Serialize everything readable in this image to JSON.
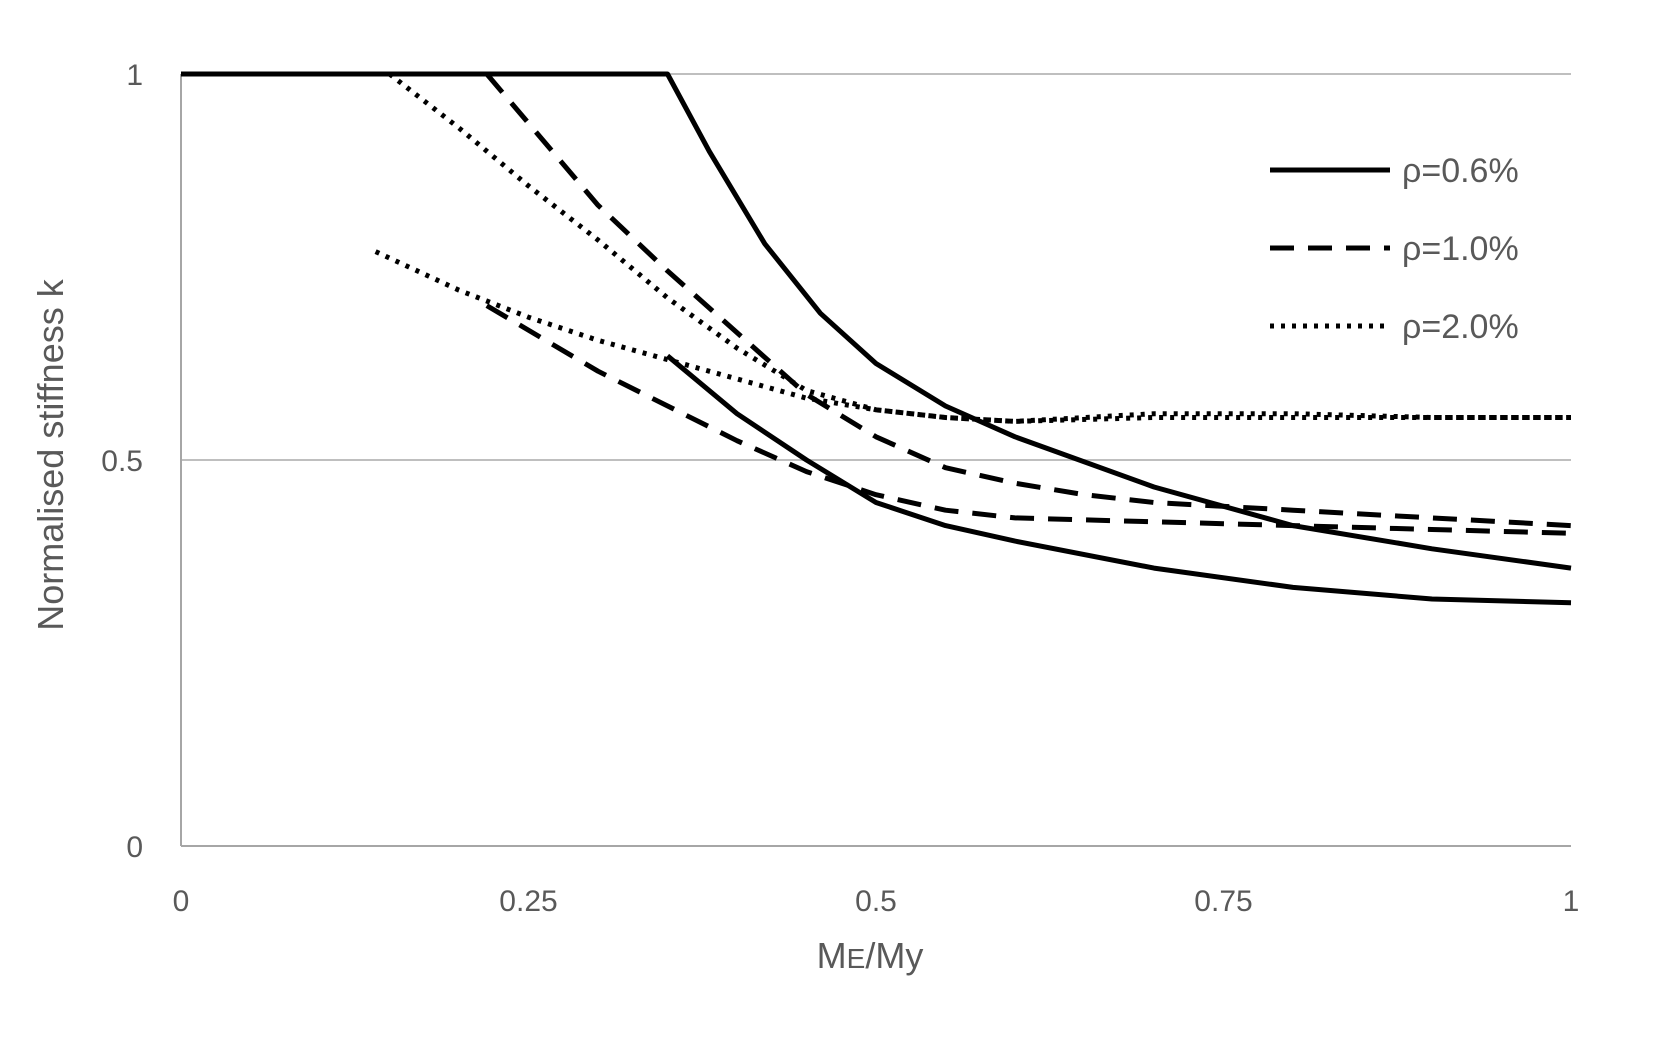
{
  "chart_data": {
    "type": "line",
    "xlabel": "ME/My",
    "xlabel_main": "M",
    "xlabel_sub": "E",
    "xlabel_rest": "/My",
    "ylabel": "Normalised stiffness k",
    "xlim": [
      0,
      1
    ],
    "ylim": [
      0,
      1
    ],
    "xticks": [
      0,
      0.25,
      0.5,
      0.75,
      1
    ],
    "xtick_labels": [
      "0",
      "0.25",
      "0.5",
      "0.75",
      "1"
    ],
    "yticks": [
      0,
      0.5,
      1
    ],
    "ytick_labels": [
      "0",
      "0.5",
      "1"
    ],
    "grid": {
      "horizontal": true,
      "vertical": false
    },
    "legend_position": "top-right",
    "line_color": "#000000",
    "gridline_color": "#bfbfbf",
    "axis_color": "#a6a6a6",
    "legend": [
      {
        "label": "ρ=0.6%",
        "style": "solid"
      },
      {
        "label": "ρ=1.0%",
        "style": "dashed"
      },
      {
        "label": "ρ=2.0%",
        "style": "dotted"
      }
    ],
    "series": [
      {
        "legend_index": 0,
        "style": "solid",
        "points": [
          [
            0,
            1
          ],
          [
            0.35,
            1
          ],
          [
            0.38,
            0.9
          ],
          [
            0.42,
            0.78
          ],
          [
            0.46,
            0.69
          ],
          [
            0.5,
            0.625
          ],
          [
            0.55,
            0.57
          ],
          [
            0.6,
            0.53
          ],
          [
            0.7,
            0.465
          ],
          [
            0.8,
            0.415
          ],
          [
            0.9,
            0.385
          ],
          [
            1.0,
            0.36
          ]
        ]
      },
      {
        "legend_index": 0,
        "style": "solid",
        "points": [
          [
            0.35,
            0.635
          ],
          [
            0.4,
            0.56
          ],
          [
            0.45,
            0.5
          ],
          [
            0.5,
            0.445
          ],
          [
            0.55,
            0.415
          ],
          [
            0.6,
            0.395
          ],
          [
            0.7,
            0.36
          ],
          [
            0.8,
            0.335
          ],
          [
            0.9,
            0.32
          ],
          [
            1.0,
            0.315
          ]
        ]
      },
      {
        "legend_index": 1,
        "style": "dashed",
        "points": [
          [
            0.22,
            1
          ],
          [
            0.3,
            0.83
          ],
          [
            0.35,
            0.745
          ],
          [
            0.4,
            0.665
          ],
          [
            0.45,
            0.585
          ],
          [
            0.5,
            0.53
          ],
          [
            0.55,
            0.49
          ],
          [
            0.6,
            0.47
          ],
          [
            0.65,
            0.455
          ],
          [
            0.7,
            0.445
          ],
          [
            0.8,
            0.435
          ],
          [
            0.9,
            0.425
          ],
          [
            1.0,
            0.415
          ]
        ]
      },
      {
        "legend_index": 1,
        "style": "dashed",
        "points": [
          [
            0.22,
            0.7
          ],
          [
            0.3,
            0.615
          ],
          [
            0.4,
            0.525
          ],
          [
            0.45,
            0.485
          ],
          [
            0.5,
            0.455
          ],
          [
            0.55,
            0.435
          ],
          [
            0.6,
            0.425
          ],
          [
            0.7,
            0.42
          ],
          [
            0.8,
            0.415
          ],
          [
            0.9,
            0.41
          ],
          [
            1.0,
            0.405
          ]
        ]
      },
      {
        "legend_index": 2,
        "style": "dotted",
        "points": [
          [
            0.15,
            1
          ],
          [
            0.2,
            0.93
          ],
          [
            0.25,
            0.855
          ],
          [
            0.3,
            0.785
          ],
          [
            0.35,
            0.71
          ],
          [
            0.4,
            0.645
          ],
          [
            0.45,
            0.59
          ],
          [
            0.5,
            0.565
          ],
          [
            0.55,
            0.555
          ],
          [
            0.6,
            0.55
          ],
          [
            0.7,
            0.555
          ],
          [
            0.8,
            0.555
          ],
          [
            0.9,
            0.555
          ],
          [
            1.0,
            0.555
          ]
        ]
      },
      {
        "legend_index": 2,
        "style": "dotted",
        "points": [
          [
            0.14,
            0.77
          ],
          [
            0.2,
            0.72
          ],
          [
            0.25,
            0.685
          ],
          [
            0.3,
            0.655
          ],
          [
            0.35,
            0.63
          ],
          [
            0.4,
            0.605
          ],
          [
            0.45,
            0.58
          ],
          [
            0.5,
            0.565
          ],
          [
            0.55,
            0.555
          ],
          [
            0.6,
            0.55
          ],
          [
            0.7,
            0.56
          ],
          [
            0.8,
            0.56
          ],
          [
            0.9,
            0.555
          ],
          [
            1.0,
            0.555
          ]
        ]
      }
    ]
  }
}
